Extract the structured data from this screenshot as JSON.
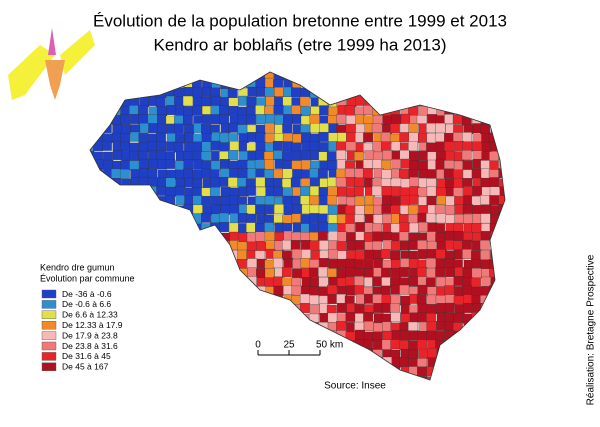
{
  "title": "Évolution de la population bretonne entre 1999 et 2013",
  "subtitle": "Kendro ar boblañs (etre 1999 ha 2013)",
  "legend": {
    "title_1": "Kendro dre gumun",
    "title_2": "Évolution par commune",
    "items": [
      {
        "label": "De -36 à -0.6",
        "color": "#1f3fc4"
      },
      {
        "label": "De -0.6 à 6.6",
        "color": "#2e8fd0"
      },
      {
        "label": "De 6.6 à 12.33",
        "color": "#e2e04a"
      },
      {
        "label": "De 12.33 à 17.9",
        "color": "#f08a2a"
      },
      {
        "label": "De 17.9 à 23.8",
        "color": "#f7b8b8"
      },
      {
        "label": "De 23.8 à 31.6",
        "color": "#f07a7a"
      },
      {
        "label": "De 31.6 à 45",
        "color": "#e8242a"
      },
      {
        "label": "De 45 à 167",
        "color": "#b01020"
      }
    ]
  },
  "scale": {
    "zero": "0",
    "mid": "25",
    "end": "50 km"
  },
  "source": "Source: Insee",
  "credit": "Réalisation: Bretagne Prospective"
}
